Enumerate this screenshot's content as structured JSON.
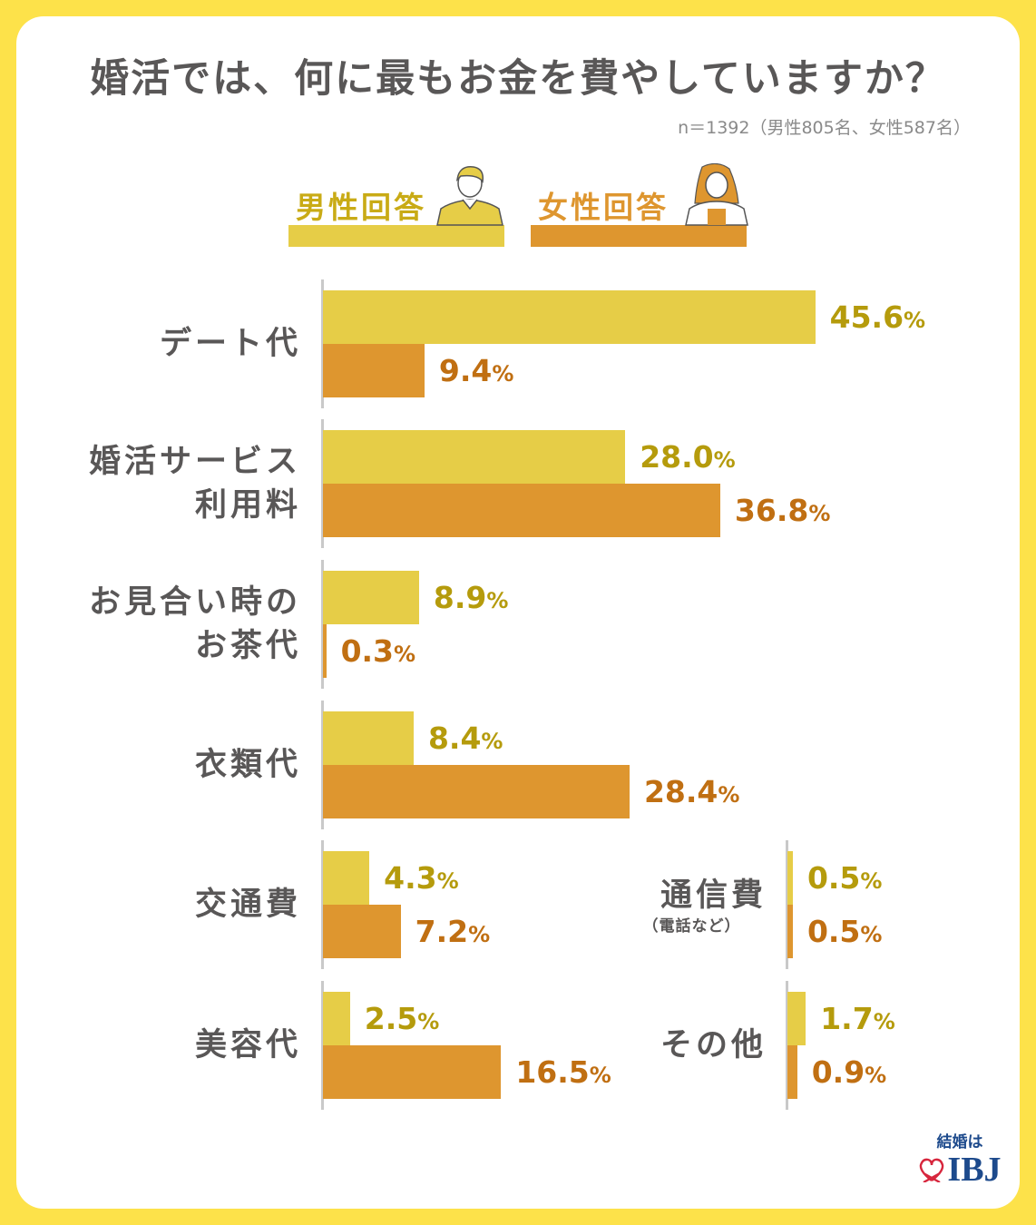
{
  "title": "婚活では、何に最もお金を費やしていますか？",
  "note": "n＝1392（男性805名、女性587名）",
  "colors": {
    "male": "#e6cd47",
    "female": "#de962f",
    "male_text": "#b59b0c",
    "female_text": "#c06f12"
  },
  "legend": {
    "male": "男性回答",
    "female": "女性回答"
  },
  "logo": {
    "top": "結婚は",
    "brand": "IBJ"
  },
  "chart_data": {
    "type": "bar",
    "orientation": "horizontal",
    "unit": "%",
    "series": [
      {
        "name": "男性回答",
        "values": [
          45.6,
          28.0,
          8.9,
          8.4,
          4.3,
          2.5,
          0.5,
          1.7
        ]
      },
      {
        "name": "女性回答",
        "values": [
          9.4,
          36.8,
          0.3,
          28.4,
          7.2,
          16.5,
          0.5,
          0.9
        ]
      }
    ],
    "categories": [
      "デート代",
      "婚活サービス利用料",
      "お見合い時のお茶代",
      "衣類代",
      "交通費",
      "美容代",
      "通信費（電話など）",
      "その他"
    ],
    "category_lines": [
      [
        "デート代"
      ],
      [
        "婚活サービス",
        "利用料"
      ],
      [
        "お見合い時の",
        "お茶代"
      ],
      [
        "衣類代"
      ],
      [
        "交通費"
      ],
      [
        "美容代"
      ],
      [
        "通信費"
      ],
      [
        "その他"
      ]
    ],
    "category_sub": [
      "",
      "",
      "",
      "",
      "",
      "",
      "（電話など）",
      ""
    ],
    "value_labels": {
      "male": [
        "45.6",
        "28.0",
        "8.9",
        "8.4",
        "4.3",
        "2.5",
        "0.5",
        "1.7"
      ],
      "female": [
        "9.4",
        "36.8",
        "0.3",
        "28.4",
        "7.2",
        "16.5",
        "0.5",
        "0.9"
      ]
    },
    "percent_sign": "%"
  }
}
